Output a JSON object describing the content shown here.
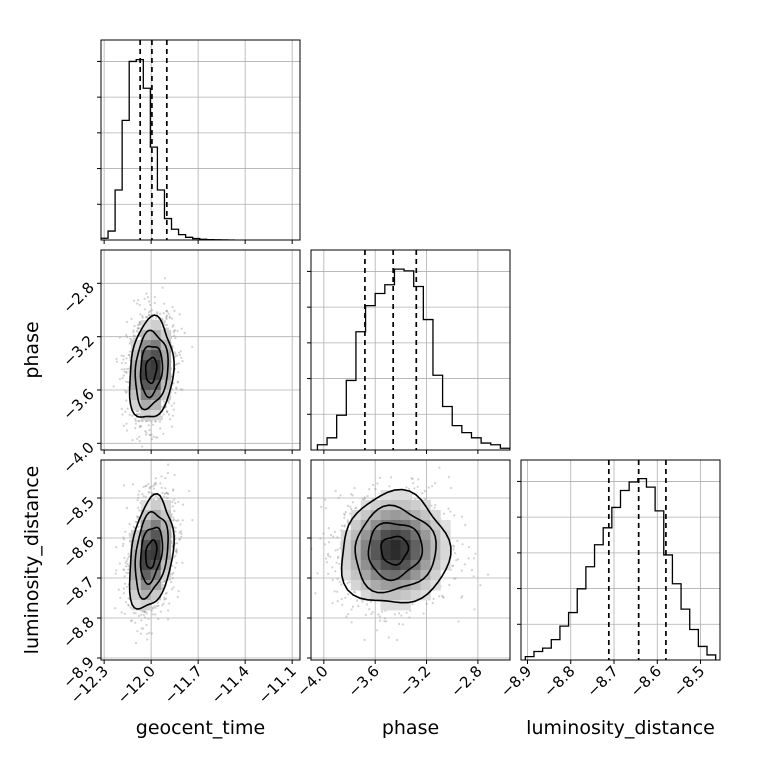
{
  "chart_data": {
    "type": "corner",
    "parameters": [
      "geocent_time",
      "phase",
      "luminosity_distance"
    ],
    "grid": true,
    "colors": {
      "line": "#000000",
      "grid": "#b0b0b0",
      "samples": "#9a9a9a"
    },
    "histograms": [
      {
        "parameter": "geocent_time",
        "xlim": [
          -12.32,
          -11.05
        ],
        "ticks": [
          -12.3,
          -12.0,
          -11.7,
          -11.4,
          -11.1
        ],
        "tick_labels": [
          "−12.3",
          "−12.0",
          "−11.7",
          "−11.4",
          "−11.1"
        ],
        "bin_edges": [
          -12.32,
          -12.275,
          -12.23,
          -12.185,
          -12.14,
          -12.095,
          -12.05,
          -12.005,
          -11.96,
          -11.915,
          -11.87,
          -11.825,
          -11.78,
          -11.735,
          -11.69,
          -11.645,
          -11.6,
          -11.555,
          -11.51,
          -11.465
        ],
        "counts": [
          1,
          5,
          28,
          67,
          100,
          101,
          85,
          52,
          28,
          12,
          6,
          3,
          1.5,
          0.8,
          0.4,
          0.2,
          0.1,
          0.05,
          0
        ],
        "ymax": 112,
        "quantiles": [
          -12.07,
          -11.995,
          -11.9
        ]
      },
      {
        "parameter": "phase",
        "xlim": [
          -4.1,
          -2.55
        ],
        "ticks": [
          -4.0,
          -3.6,
          -3.2,
          -2.8
        ],
        "tick_labels": [
          "−4.0",
          "−3.6",
          "−3.2",
          "−2.8"
        ],
        "bin_edges": [
          -4.05,
          -3.975,
          -3.9,
          -3.825,
          -3.75,
          -3.675,
          -3.6,
          -3.525,
          -3.45,
          -3.375,
          -3.3,
          -3.225,
          -3.15,
          -3.075,
          -3,
          -2.925,
          -2.85,
          -2.775,
          -2.7,
          -2.625,
          -2.55
        ],
        "counts": [
          3,
          7,
          20,
          40,
          68,
          83,
          90,
          95,
          104,
          103,
          94,
          75,
          43,
          25,
          14,
          10,
          7,
          4,
          3,
          1
        ],
        "ymax": 115,
        "quantiles": [
          -3.68,
          -3.46,
          -3.28
        ]
      },
      {
        "parameter": "luminosity_distance",
        "xlim": [
          -8.915,
          -8.455
        ],
        "ticks": [
          -8.9,
          -8.8,
          -8.7,
          -8.6,
          -8.5
        ],
        "tick_labels": [
          "−8.9",
          "−8.8",
          "−8.7",
          "−8.6",
          "−8.5"
        ],
        "bin_edges": [
          -8.905,
          -8.885,
          -8.865,
          -8.845,
          -8.825,
          -8.805,
          -8.785,
          -8.765,
          -8.745,
          -8.725,
          -8.705,
          -8.685,
          -8.665,
          -8.645,
          -8.625,
          -8.605,
          -8.585,
          -8.565,
          -8.545,
          -8.525,
          -8.505,
          -8.485,
          -8.465
        ],
        "counts": [
          2,
          5,
          7,
          12,
          20,
          28,
          42,
          55,
          68,
          78,
          90,
          100,
          105,
          107,
          102,
          88,
          62,
          45,
          30,
          18,
          8,
          3
        ],
        "ymax": 118,
        "quantiles": [
          -8.712,
          -8.643,
          -8.58
        ]
      }
    ],
    "scatter_panels": [
      {
        "x": "geocent_time",
        "y": "phase",
        "xlim": [
          -12.32,
          -11.05
        ],
        "ylim": [
          -4.05,
          -2.55
        ],
        "yticks": [
          -4.0,
          -3.6,
          -3.2,
          -2.8
        ],
        "ytick_labels": [
          "−4.0",
          "−3.6",
          "−3.2",
          "−2.8"
        ],
        "peak": [
          -12.0,
          -3.45
        ],
        "sigma": [
          0.07,
          0.19
        ],
        "rho": 0.15,
        "contour_levels": [
          0.5,
          1.0,
          1.5,
          2.0
        ]
      },
      {
        "x": "geocent_time",
        "y": "luminosity_distance",
        "xlim": [
          -12.32,
          -11.05
        ],
        "ylim": [
          -8.905,
          -8.405
        ],
        "yticks": [
          -8.9,
          -8.8,
          -8.7,
          -8.6,
          -8.5
        ],
        "ytick_labels": [
          "−8.9",
          "−8.8",
          "−8.7",
          "−8.6",
          "−8.5"
        ],
        "peak": [
          -12.0,
          -8.64
        ],
        "sigma": [
          0.07,
          0.07
        ],
        "rho": 0.3,
        "contour_levels": [
          0.5,
          1.0,
          1.5,
          2.0
        ]
      },
      {
        "x": "phase",
        "y": "luminosity_distance",
        "xlim": [
          -4.1,
          -2.55
        ],
        "ylim": [
          -8.905,
          -8.405
        ],
        "peak": [
          -3.45,
          -8.63
        ],
        "sigma": [
          0.21,
          0.07
        ],
        "rho": 0.05,
        "contour_levels": [
          0.5,
          1.0,
          1.5,
          2.0
        ]
      }
    ]
  }
}
